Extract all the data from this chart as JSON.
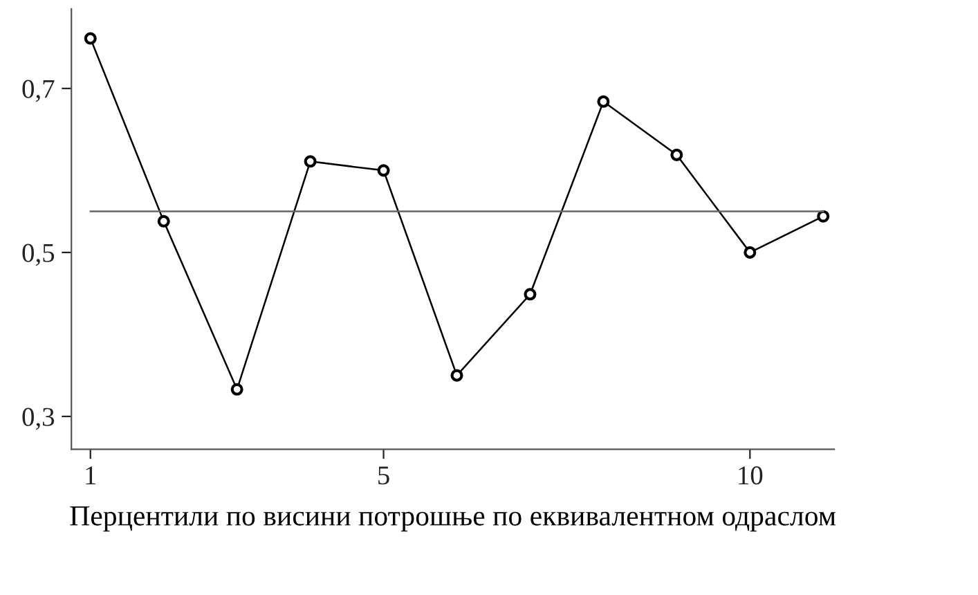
{
  "chart_data": {
    "type": "line",
    "xlabel": "Перцентили по висини потрошње по еквивалентном одраслом",
    "x": [
      1,
      2,
      3,
      4,
      5,
      6,
      7,
      8,
      9,
      10,
      11
    ],
    "series": [
      {
        "color": "#000000",
        "marker": "circle",
        "values": [
          0.761,
          0.538,
          0.333,
          0.611,
          0.6,
          0.35,
          0.449,
          0.684,
          0.619,
          0.5,
          0.544
        ]
      },
      {
        "color": "#666666",
        "marker": "none",
        "x": [
          1,
          11
        ],
        "values": [
          0.55,
          0.55
        ]
      }
    ],
    "xlim": [
      0.74,
      11.15
    ],
    "ylim": [
      0.26,
      0.797
    ],
    "xticks": [
      1,
      5,
      10
    ],
    "yticks": [
      {
        "value": 0.3,
        "label": "0,3"
      },
      {
        "value": 0.5,
        "label": "0,5"
      },
      {
        "value": 0.7,
        "label": "0,7"
      }
    ],
    "grid": false,
    "legend": false,
    "line_style": "solid"
  }
}
